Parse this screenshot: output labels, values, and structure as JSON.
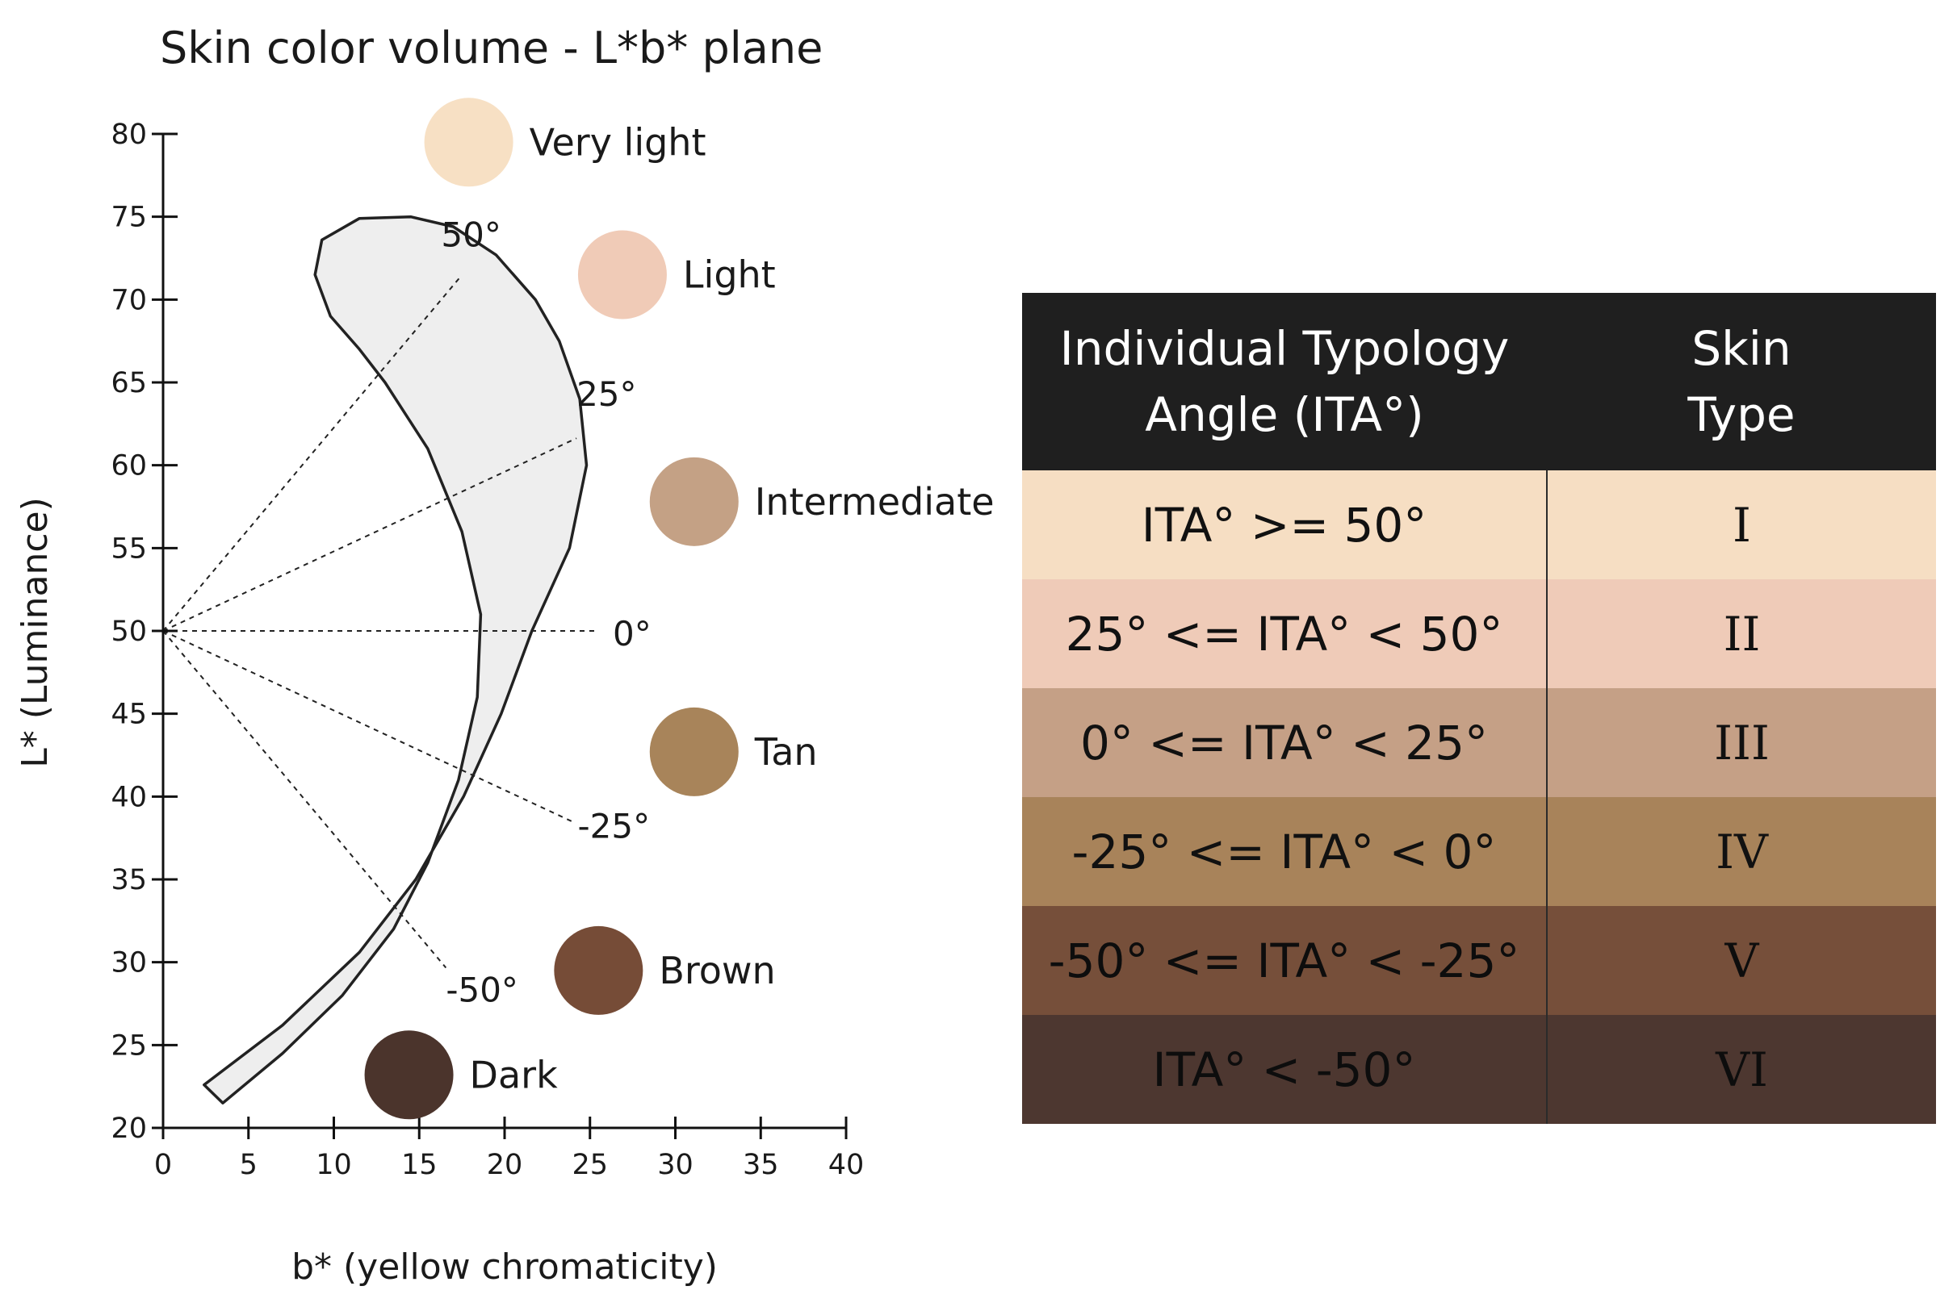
{
  "chart_data": {
    "type": "scatter",
    "title": "Skin color volume - L*b* plane",
    "xlabel": "b* (yellow chromaticity)",
    "ylabel": "L* (Luminance)",
    "xlim": [
      0,
      40
    ],
    "ylim": [
      20,
      80
    ],
    "x_ticks": [
      "0",
      "5",
      "10",
      "15",
      "20",
      "25",
      "30",
      "35",
      "40"
    ],
    "y_ticks": [
      "20",
      "25",
      "30",
      "35",
      "40",
      "45",
      "50",
      "55",
      "60",
      "65",
      "70",
      "75",
      "80"
    ],
    "grid": false,
    "origin": {
      "x": 0,
      "y": 50
    },
    "ita_angles": [
      {
        "label": "50°",
        "deg": 50
      },
      {
        "label": "25°",
        "deg": 25
      },
      {
        "label": "0°",
        "deg": 0
      },
      {
        "label": "-25°",
        "deg": -25
      },
      {
        "label": "-50°",
        "deg": -50
      }
    ],
    "volume_outline": [
      [
        2.4,
        22.6
      ],
      [
        7.0,
        26.2
      ],
      [
        11.5,
        30.6
      ],
      [
        14.8,
        35.0
      ],
      [
        17.6,
        40.0
      ],
      [
        19.8,
        45.0
      ],
      [
        21.6,
        50.0
      ],
      [
        23.8,
        55.0
      ],
      [
        24.8,
        60.0
      ],
      [
        24.4,
        64.0
      ],
      [
        23.2,
        67.5
      ],
      [
        21.8,
        70.0
      ],
      [
        19.5,
        72.7
      ],
      [
        17.0,
        74.4
      ],
      [
        14.5,
        75.0
      ],
      [
        11.5,
        74.9
      ],
      [
        9.3,
        73.6
      ],
      [
        8.9,
        71.5
      ],
      [
        9.8,
        69.0
      ],
      [
        11.5,
        67.0
      ],
      [
        13.0,
        65.0
      ],
      [
        15.5,
        61.0
      ],
      [
        17.5,
        56.0
      ],
      [
        18.6,
        51.0
      ],
      [
        18.4,
        46.0
      ],
      [
        17.3,
        41.0
      ],
      [
        15.5,
        36.0
      ],
      [
        13.5,
        32.0
      ],
      [
        10.5,
        28.0
      ],
      [
        7.0,
        24.5
      ],
      [
        3.5,
        21.5
      ]
    ],
    "skin_points": [
      {
        "label": "Very light",
        "b": 17.9,
        "L": 79.5,
        "color": "#f7e0c4"
      },
      {
        "label": "Light",
        "b": 26.9,
        "L": 71.5,
        "color": "#f0cbb7"
      },
      {
        "label": "Intermediate",
        "b": 31.1,
        "L": 57.8,
        "color": "#c4a185"
      },
      {
        "label": "Tan",
        "b": 31.1,
        "L": 42.7,
        "color": "#a8845a"
      },
      {
        "label": "Brown",
        "b": 25.5,
        "L": 29.5,
        "color": "#764c37"
      },
      {
        "label": "Dark",
        "b": 14.4,
        "L": 23.2,
        "color": "#4b342c"
      }
    ]
  },
  "table": {
    "header": {
      "range_line1": "Individual Typology",
      "range_line2": "Angle (ITA°)",
      "type_line1": "Skin",
      "type_line2": "Type"
    },
    "rows": [
      {
        "range": "ITA° >= 50°",
        "type": "I",
        "color": "#f6dec3"
      },
      {
        "range": "25° <= ITA° < 50°",
        "type": "II",
        "color": "#efcbb8"
      },
      {
        "range": "0° <= ITA° < 25°",
        "type": "III",
        "color": "#c5a086"
      },
      {
        "range": "-25° <= ITA° < 0°",
        "type": "IV",
        "color": "#a8835a"
      },
      {
        "range": "-50° <= ITA° < -25°",
        "type": "V",
        "color": "#764f3a"
      },
      {
        "range": "ITA° < -50°",
        "type": "VI",
        "color": "#4d3730"
      }
    ]
  }
}
